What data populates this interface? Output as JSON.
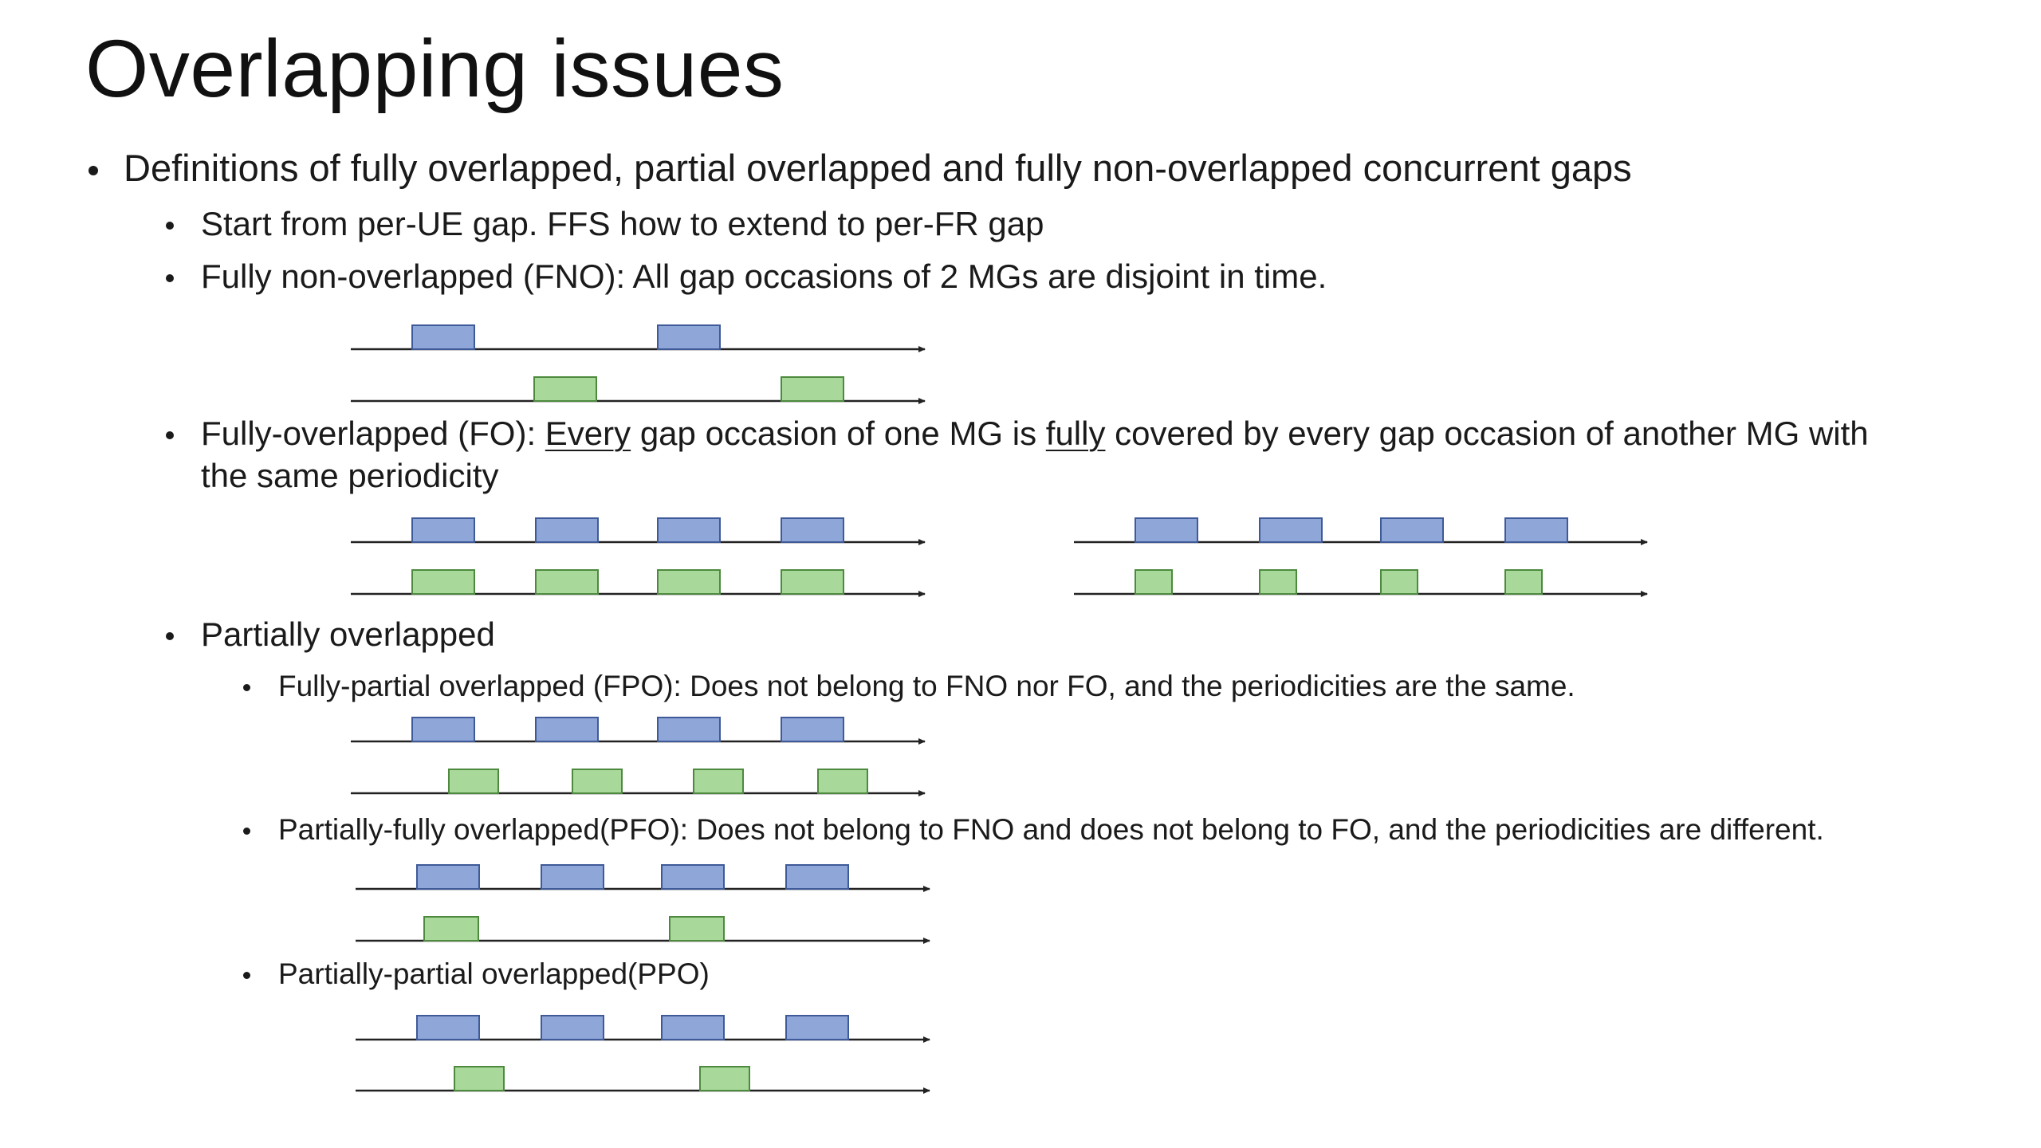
{
  "slide": {
    "title": "Overlapping issues"
  },
  "bullets": {
    "definitions": "Definitions of fully overlapped, partial overlapped and fully non-overlapped concurrent gaps",
    "start_per_ue": "Start from per-UE gap. FFS how to extend to per-FR gap",
    "fno": "Fully non-overlapped (FNO): All gap occasions of 2 MGs are disjoint in time.",
    "fo_prefix": "Fully-overlapped (FO): ",
    "fo_every": "Every",
    "fo_mid": " gap occasion of one MG is ",
    "fo_fully": "fully",
    "fo_suffix": " covered by every gap occasion of another MG with",
    "fo_line2": "the same periodicity",
    "partially": "Partially overlapped",
    "fpo": "Fully-partial overlapped (FPO): Does not belong to FNO nor FO, and the periodicities are the same.",
    "pfo": "Partially-fully overlapped(PFO): Does not belong to FNO and does not belong to FO, and the periodicities are different.",
    "ppo": "Partially-partial overlapped(PPO)"
  },
  "colors": {
    "mg1_fill": "#8fa6d8",
    "mg1_stroke": "#3f5a99",
    "mg2_fill": "#a8d89a",
    "mg2_stroke": "#4d8a3e",
    "axis": "#222222"
  }
}
